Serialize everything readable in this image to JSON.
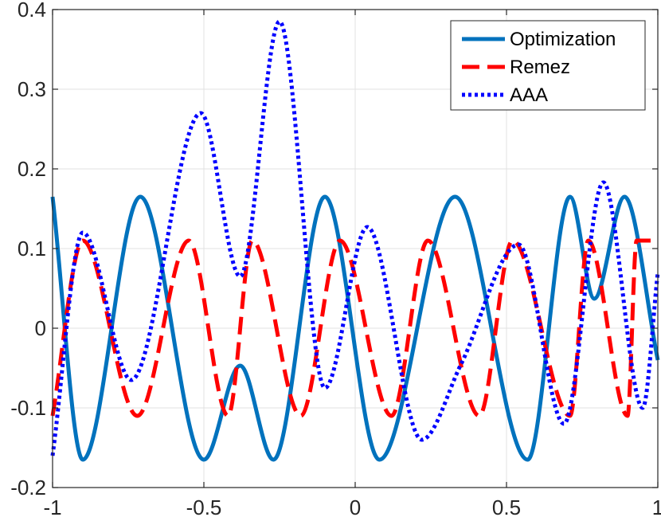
{
  "chart_data": {
    "type": "line",
    "title": "",
    "xlabel": "",
    "ylabel": "",
    "xlim": [
      -1,
      1
    ],
    "ylim": [
      -0.2,
      0.4
    ],
    "grid": true,
    "legend_position": "top-right",
    "x_ticks": [
      -1,
      -0.5,
      0,
      0.5,
      1
    ],
    "x_tick_labels": [
      "-1",
      "-0.5",
      "0",
      "0.5",
      "1"
    ],
    "y_ticks": [
      -0.2,
      -0.1,
      0,
      0.1,
      0.2,
      0.3,
      0.4
    ],
    "y_tick_labels": [
      "-0.2",
      "-0.1",
      "0",
      "0.1",
      "0.2",
      "0.3",
      "0.4"
    ],
    "series": [
      {
        "name": "Optimization",
        "color": "#0072BD",
        "style": "solid",
        "x": [
          -1,
          -0.9,
          -0.71,
          -0.5,
          -0.38,
          -0.27,
          -0.1,
          0.08,
          0.33,
          0.57,
          0.71,
          0.79,
          0.89,
          1
        ],
        "y": [
          0.165,
          -0.165,
          0.165,
          -0.165,
          -0.047,
          -0.165,
          0.165,
          -0.165,
          0.165,
          -0.165,
          0.165,
          0.037,
          0.165,
          -0.04
        ]
      },
      {
        "name": "Remez",
        "color": "#FF0000",
        "style": "dashed",
        "x": [
          -1,
          -0.9,
          -0.72,
          -0.55,
          -0.42,
          -0.34,
          -0.18,
          -0.05,
          0.12,
          0.24,
          0.41,
          0.52,
          0.71,
          0.77,
          0.9,
          0.93,
          1
        ],
        "y": [
          -0.11,
          0.11,
          -0.11,
          0.11,
          -0.11,
          0.11,
          -0.11,
          0.11,
          -0.11,
          0.11,
          -0.11,
          0.11,
          -0.11,
          0.11,
          -0.11,
          0.11,
          0.11
        ]
      },
      {
        "name": "AAA",
        "color": "#0000FF",
        "style": "dotted",
        "x": [
          -1,
          -0.9,
          -0.74,
          -0.51,
          -0.38,
          -0.25,
          -0.1,
          0.04,
          0.22,
          0.35,
          0.54,
          0.69,
          0.82,
          0.95,
          1
        ],
        "y": [
          -0.16,
          0.12,
          -0.065,
          0.27,
          0.065,
          0.385,
          -0.075,
          0.127,
          -0.14,
          -0.045,
          0.105,
          -0.12,
          0.183,
          -0.1,
          0.07
        ]
      }
    ]
  }
}
